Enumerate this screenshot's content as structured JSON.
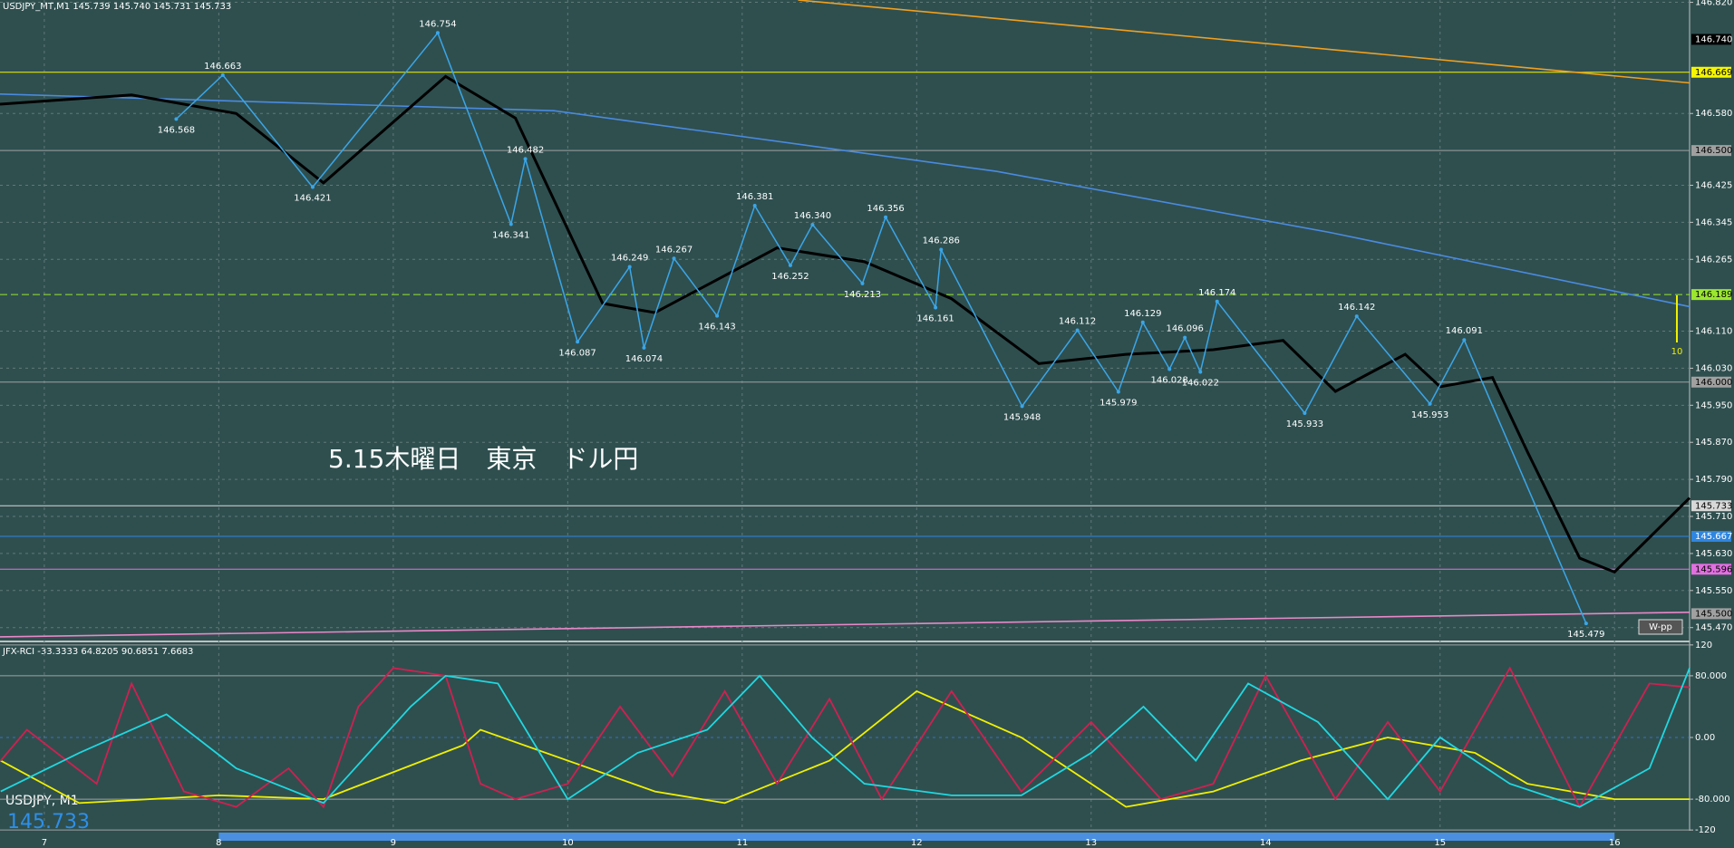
{
  "chart_data": [
    {
      "type": "line",
      "title": "USDJPY_MT,M1  145.739 145.740 145.731 145.733",
      "annotation": "5.15木曜日　東京　ドル円",
      "badge": "W-pp",
      "marker_label": "10",
      "footer_symbol": "USDJPY, M1",
      "footer_price": "145.733",
      "color": "#3aa6e8",
      "x": [
        7.756,
        8.023,
        8.538,
        9.255,
        9.675,
        9.757,
        10.056,
        10.355,
        10.437,
        10.609,
        10.856,
        11.072,
        11.276,
        11.403,
        11.689,
        11.822,
        12.108,
        12.14,
        12.604,
        12.921,
        13.156,
        13.296,
        13.449,
        13.537,
        13.626,
        13.722,
        14.224,
        14.522,
        14.942,
        15.138,
        15.837
      ],
      "values": [
        146.568,
        146.663,
        146.421,
        146.754,
        146.341,
        146.482,
        146.087,
        146.249,
        146.074,
        146.267,
        146.143,
        146.381,
        146.252,
        146.34,
        146.213,
        146.356,
        146.161,
        146.286,
        145.948,
        146.112,
        145.979,
        146.129,
        146.028,
        146.096,
        146.022,
        146.174,
        145.933,
        146.142,
        145.953,
        146.091,
        145.479
      ],
      "value_labels": [
        "146.568",
        "146.663",
        "146.421",
        "146.754",
        "146.341",
        "146.482",
        "146.087",
        "146.249",
        "146.074",
        "146.267",
        "146.143",
        "146.381",
        "146.252",
        "146.340",
        "146.213",
        "146.356",
        "146.161",
        "146.286",
        "145.948",
        "146.112",
        "145.979",
        "146.129",
        "146.028",
        "146.096",
        "146.022",
        "146.174",
        "145.933",
        "146.142",
        "145.953",
        "146.091",
        "145.479"
      ],
      "xlim": [
        6.746,
        16.43
      ],
      "xticks": [
        7,
        8,
        9,
        10,
        11,
        12,
        13,
        14,
        15,
        16
      ],
      "ylim": [
        145.444,
        146.825
      ],
      "yticks": [
        {
          "value": 146.82,
          "label": "146.820"
        },
        {
          "value": 146.58,
          "label": "146.580"
        },
        {
          "value": 146.425,
          "label": "146.425"
        },
        {
          "value": 146.345,
          "label": "146.345"
        },
        {
          "value": 146.265,
          "label": "146.265"
        },
        {
          "value": 146.11,
          "label": "146.110"
        },
        {
          "value": 146.03,
          "label": "146.030"
        },
        {
          "value": 145.95,
          "label": "145.950"
        },
        {
          "value": 145.87,
          "label": "145.870"
        },
        {
          "value": 145.79,
          "label": "145.790"
        },
        {
          "value": 145.71,
          "label": "145.710"
        },
        {
          "value": 145.63,
          "label": "145.630"
        },
        {
          "value": 145.55,
          "label": "145.550"
        },
        {
          "value": 145.47,
          "label": "145.470"
        }
      ],
      "grid": true,
      "levels": [
        {
          "value": 146.74,
          "label": "146.740",
          "color": "#000000",
          "line": false
        },
        {
          "value": 146.669,
          "label": "146.669",
          "color": "#f5f500",
          "line": true
        },
        {
          "value": 146.5,
          "label": "146.500",
          "color": "#a0a0a0",
          "line": true
        },
        {
          "value": 146.189,
          "label": "146.189",
          "color": "#9be62f",
          "line": true,
          "dashed": true
        },
        {
          "value": 146.0,
          "label": "146.000",
          "color": "#a0a0a0",
          "line": true
        },
        {
          "value": 145.733,
          "label": "145.733",
          "color": "#d8d8d8",
          "line": true
        },
        {
          "value": 145.667,
          "label": "145.667",
          "color": "#2f86e0",
          "line": true
        },
        {
          "value": 145.596,
          "label": "145.596",
          "color": "#e070e0",
          "line": true
        },
        {
          "value": 145.5,
          "label": "145.500",
          "color": "#a0a0a0",
          "line": false
        }
      ],
      "lines": [
        {
          "color": "#f0a020",
          "x": [
            11.32,
            16.43
          ],
          "values": [
            146.825,
            146.646
          ]
        },
        {
          "color": "#4a8be0",
          "x": [
            6.746,
            9.92,
            12.46,
            14.37,
            16.43
          ],
          "values": [
            146.622,
            146.586,
            146.455,
            146.323,
            146.163
          ]
        },
        {
          "color": "#e888c8",
          "x": [
            6.746,
            16.43
          ],
          "values": [
            145.45,
            145.503
          ]
        },
        {
          "color": "#000000",
          "x": [
            6.746,
            7.5,
            8.1,
            8.6,
            9.3,
            9.7,
            10.2,
            10.5,
            11.2,
            11.7,
            12.2,
            12.7,
            13.2,
            13.7,
            14.1,
            14.4,
            14.8,
            15.0,
            15.3,
            15.5,
            15.8,
            16.0,
            16.43
          ],
          "values": [
            146.6,
            146.62,
            146.58,
            146.43,
            146.66,
            146.57,
            146.17,
            146.15,
            146.29,
            146.26,
            146.18,
            146.04,
            146.06,
            146.07,
            146.09,
            145.98,
            146.06,
            145.99,
            146.01,
            145.85,
            145.62,
            145.59,
            145.75
          ]
        }
      ]
    },
    {
      "type": "line",
      "title": "JFX-RCI -33.3333 64.8205 90.6851 7.6683",
      "xlim": [
        6.746,
        16.43
      ],
      "ylim": [
        -121,
        121
      ],
      "yticks": [
        120,
        {
          "value": 80,
          "label": "80.000"
        },
        {
          "value": 0,
          "label": "0.00"
        },
        {
          "value": -80,
          "label": "-80.000"
        },
        -120
      ],
      "series": [
        {
          "color": "#f0f000",
          "x": [
            6.75,
            7.2,
            8.0,
            8.6,
            9.4,
            9.5,
            10.5,
            10.9,
            11.5,
            12.0,
            12.6,
            13.2,
            13.7,
            14.2,
            14.7,
            15.2,
            15.5,
            16.0,
            16.43
          ],
          "values": [
            -30,
            -85,
            -75,
            -80,
            -10,
            10,
            -70,
            -85,
            -30,
            60,
            0,
            -90,
            -70,
            -30,
            0,
            -20,
            -60,
            -80,
            -80
          ]
        },
        {
          "color": "#d02050",
          "x": [
            6.75,
            6.9,
            7.3,
            7.5,
            7.8,
            8.1,
            8.4,
            8.6,
            8.8,
            9.0,
            9.3,
            9.5,
            9.7,
            10.0,
            10.3,
            10.6,
            10.9,
            11.2,
            11.5,
            11.8,
            12.2,
            12.6,
            13.0,
            13.4,
            13.7,
            14.0,
            14.4,
            14.7,
            15.0,
            15.4,
            15.8,
            16.2,
            16.43
          ],
          "values": [
            -30,
            10,
            -60,
            70,
            -70,
            -90,
            -40,
            -90,
            40,
            90,
            80,
            -60,
            -80,
            -60,
            40,
            -50,
            60,
            -60,
            50,
            -80,
            60,
            -70,
            20,
            -80,
            -60,
            80,
            -80,
            20,
            -70,
            90,
            -90,
            70,
            65
          ]
        },
        {
          "color": "#20d8e0",
          "x": [
            6.75,
            7.2,
            7.7,
            8.1,
            8.6,
            9.1,
            9.3,
            9.6,
            10.0,
            10.4,
            10.8,
            11.1,
            11.4,
            11.7,
            12.2,
            12.6,
            13.0,
            13.3,
            13.6,
            13.9,
            14.3,
            14.7,
            15.0,
            15.4,
            15.8,
            16.2,
            16.43
          ],
          "values": [
            -70,
            -20,
            30,
            -40,
            -85,
            40,
            80,
            70,
            -80,
            -20,
            10,
            80,
            0,
            -60,
            -75,
            -75,
            -20,
            40,
            -30,
            70,
            20,
            -80,
            0,
            -60,
            -90,
            -40,
            90
          ]
        }
      ]
    }
  ]
}
